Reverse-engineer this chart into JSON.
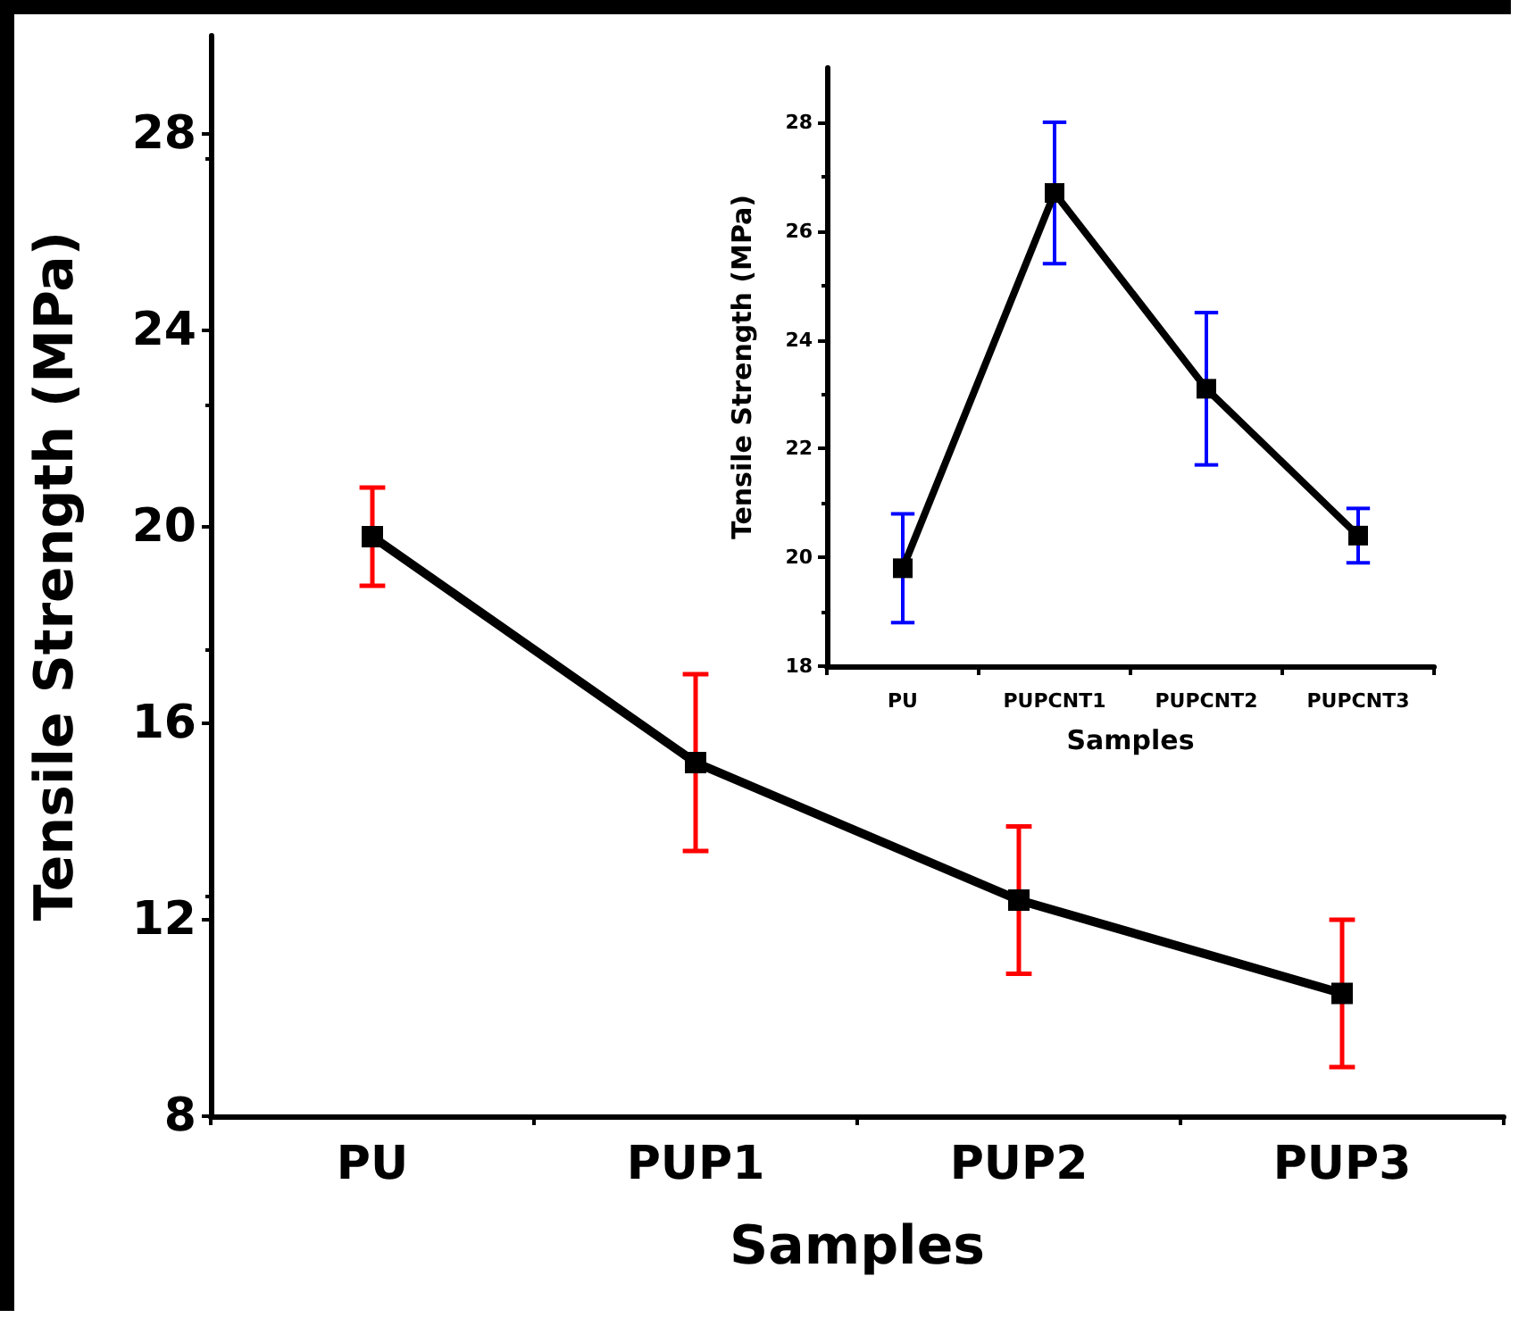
{
  "chart_data": [
    {
      "type": "line",
      "xlabel": "Samples",
      "ylabel": "Tensile Strength (MPa)",
      "categories": [
        "PU",
        "PUP1",
        "PUP2",
        "PUP3"
      ],
      "series": [
        {
          "color": "#000000",
          "values": [
            19.8,
            15.2,
            12.4,
            10.5
          ],
          "errors": [
            1.0,
            1.8,
            1.5,
            1.5
          ]
        }
      ],
      "ylim": [
        8,
        30
      ],
      "yticks": [
        8,
        12,
        16,
        20,
        24,
        28
      ],
      "grid": false,
      "marker": "square",
      "line_style": "solid"
    },
    {
      "type": "line",
      "xlabel": "Samples",
      "ylabel": "Tensile Strength (MPa)",
      "categories": [
        "PU",
        "PUPCNT1",
        "PUPCNT2",
        "PUPCNT3"
      ],
      "series": [
        {
          "color": "#000000",
          "values": [
            19.8,
            26.7,
            23.1,
            20.4
          ],
          "errors": [
            1.0,
            1.3,
            1.4,
            0.5
          ]
        }
      ],
      "ylim": [
        18,
        29
      ],
      "yticks": [
        18,
        20,
        22,
        24,
        26,
        28
      ],
      "grid": false,
      "marker": "square",
      "line_style": "solid"
    }
  ]
}
